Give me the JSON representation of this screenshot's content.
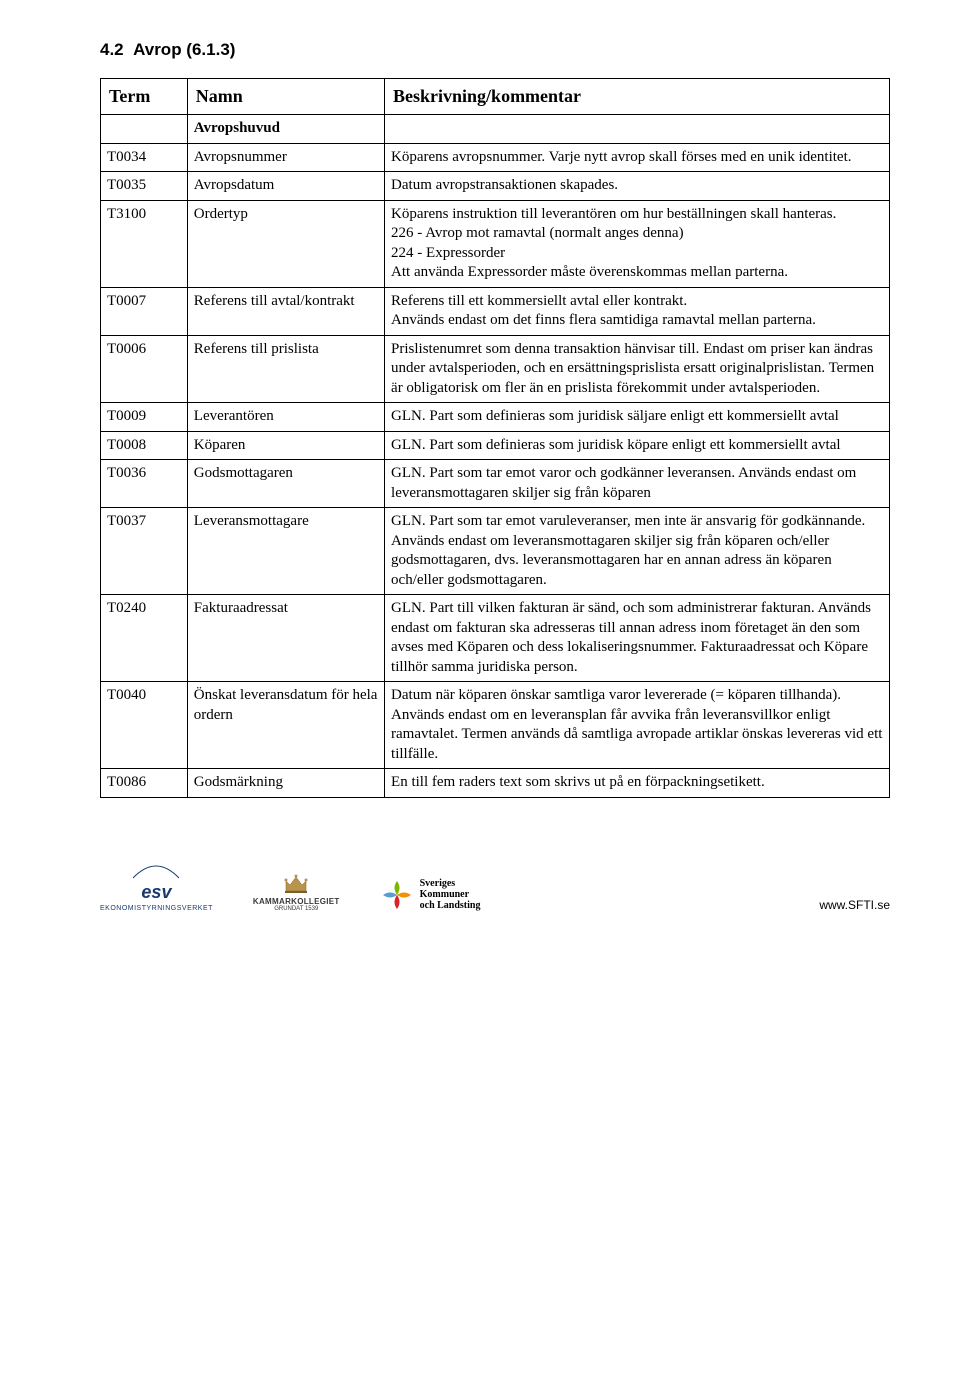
{
  "section": {
    "number": "4.2",
    "title": "Avrop (6.1.3)"
  },
  "table": {
    "headers": [
      "Term",
      "Namn",
      "Beskrivning/kommentar"
    ],
    "subhead": "Avropshuvud",
    "rows": [
      {
        "term": "T0034",
        "namn": "Avropsnummer",
        "besk": "Köparens avropsnummer. Varje nytt avrop skall förses med en unik identitet."
      },
      {
        "term": "T0035",
        "namn": "Avropsdatum",
        "besk": "Datum avropstransaktionen skapades."
      },
      {
        "term": "T3100",
        "namn": "Ordertyp",
        "besk": "Köparens instruktion till leverantören om hur beställningen skall hanteras.\n226 - Avrop mot ramavtal (normalt anges denna)\n224 - Expressorder\nAtt använda Expressorder måste överenskommas mellan parterna."
      },
      {
        "term": "T0007",
        "namn": "Referens till avtal/kontrakt",
        "besk": "Referens till ett kommersiellt avtal eller kontrakt.\nAnvänds endast om det finns flera samtidiga ramavtal mellan parterna."
      },
      {
        "term": "T0006",
        "namn": "Referens till prislista",
        "besk": "Prislistenumret som denna transaktion hänvisar till. Endast om priser kan ändras under avtalsperioden, och en ersättningsprislista ersatt originalprislistan. Termen är obligatorisk om fler än en prislista förekommit under avtalsperioden."
      },
      {
        "term": "T0009",
        "namn": "Leverantören",
        "besk": "GLN. Part som definieras som juridisk säljare enligt ett kommersiellt avtal"
      },
      {
        "term": "T0008",
        "namn": "Köparen",
        "besk": "GLN. Part som definieras som juridisk köpare enligt ett kommersiellt avtal"
      },
      {
        "term": "T0036",
        "namn": "Godsmottagaren",
        "besk": "GLN. Part som tar emot varor och godkänner leveransen. Används endast om leveransmottagaren skiljer sig från köparen"
      },
      {
        "term": "T0037",
        "namn": "Leveransmottagare",
        "besk": "GLN. Part som tar emot varuleveranser, men inte är ansvarig för godkännande. Används endast om leveransmottagaren skiljer sig från köparen och/eller godsmottagaren, dvs. leveransmottagaren har en annan adress än köparen och/eller godsmottagaren."
      },
      {
        "term": "T0240",
        "namn": "Fakturaadressat",
        "besk": "GLN. Part till vilken fakturan är sänd, och som administrerar fakturan. Används endast om fakturan ska adresseras till annan adress inom företaget än den som avses med Köparen och dess lokaliseringsnummer. Fakturaadressat och Köpare tillhör samma juridiska person."
      },
      {
        "term": "T0040",
        "namn": "Önskat leveransdatum för hela ordern",
        "besk": "Datum när köparen önskar samtliga varor levererade (= köparen tillhanda). Används endast om en leveransplan får avvika från leveransvillkor enligt ramavtalet. Termen används då samtliga avropade artiklar önskas levereras vid ett tillfälle."
      },
      {
        "term": "T0086",
        "namn": "Godsmärkning",
        "besk": "En till fem raders text som skrivs ut på en förpackningsetikett."
      }
    ]
  },
  "footer": {
    "esv": {
      "main": "esv",
      "sub": "EKONOMISTYRNINGSVERKET"
    },
    "kk": {
      "main": "KAMMARKOLLEGIET",
      "sub": "GRUNDAT 1539"
    },
    "skl": {
      "line1": "Sveriges",
      "line2": "Kommuner",
      "line3": "och Landsting"
    },
    "url": "www.SFTI.se",
    "colors": {
      "esv_blue": "#1a3a6e",
      "skl_green": "#7ab800",
      "skl_orange": "#f39200",
      "skl_red": "#d8232a",
      "skl_blue": "#5b9bd5",
      "kk_gold": "#b8954a"
    }
  }
}
